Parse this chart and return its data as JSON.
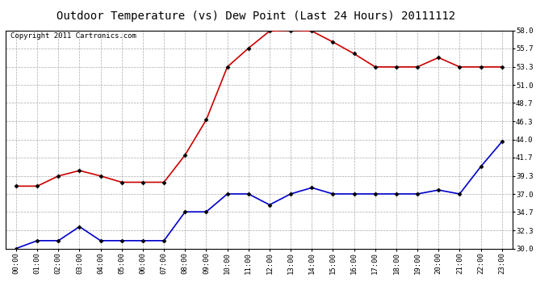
{
  "title": "Outdoor Temperature (vs) Dew Point (Last 24 Hours) 20111112",
  "copyright": "Copyright 2011 Cartronics.com",
  "x_labels": [
    "00:00",
    "01:00",
    "02:00",
    "03:00",
    "04:00",
    "05:00",
    "06:00",
    "07:00",
    "08:00",
    "09:00",
    "10:00",
    "11:00",
    "12:00",
    "13:00",
    "14:00",
    "15:00",
    "16:00",
    "17:00",
    "18:00",
    "19:00",
    "20:00",
    "21:00",
    "22:00",
    "23:00"
  ],
  "temp_data": [
    38.0,
    38.0,
    39.3,
    40.0,
    39.3,
    38.5,
    38.5,
    38.5,
    42.0,
    46.5,
    53.3,
    55.7,
    57.9,
    58.0,
    57.9,
    56.5,
    55.0,
    53.3,
    53.3,
    53.3,
    54.5,
    53.3,
    53.3,
    53.3
  ],
  "dew_data": [
    30.0,
    31.0,
    31.0,
    32.8,
    31.0,
    31.0,
    31.0,
    31.0,
    34.7,
    34.7,
    37.0,
    37.0,
    35.6,
    37.0,
    37.8,
    37.0,
    37.0,
    37.0,
    37.0,
    37.0,
    37.5,
    37.0,
    40.5,
    43.7
  ],
  "temp_color": "#cc0000",
  "dew_color": "#0000cc",
  "background_color": "#ffffff",
  "grid_color": "#aaaaaa",
  "ylim": [
    30.0,
    58.0
  ],
  "yticks": [
    30.0,
    32.3,
    34.7,
    37.0,
    39.3,
    41.7,
    44.0,
    46.3,
    48.7,
    51.0,
    53.3,
    55.7,
    58.0
  ],
  "title_fontsize": 10,
  "copyright_fontsize": 6.5,
  "tick_fontsize": 6.5,
  "marker": "D",
  "marker_size": 2.5,
  "marker_color": "#000000",
  "line_width": 1.2
}
